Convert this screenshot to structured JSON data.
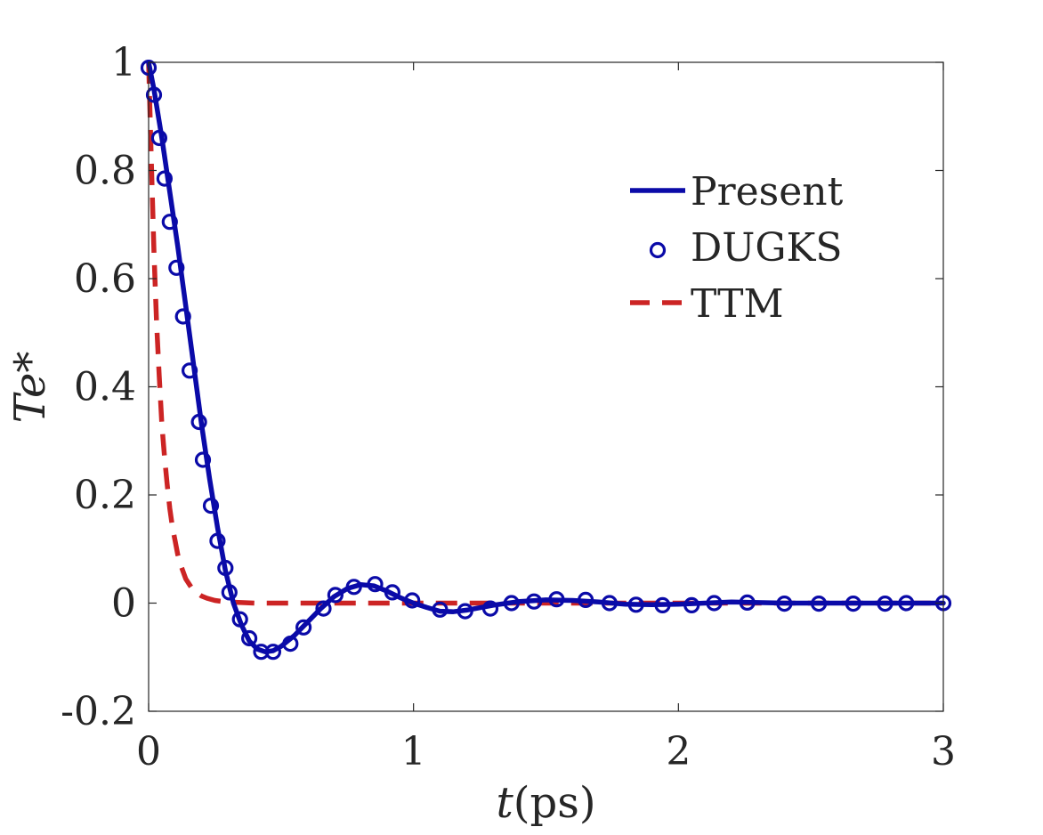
{
  "chart_data": {
    "type": "line",
    "title": "",
    "xlabel": {
      "var": "t",
      "unit": "(ps)"
    },
    "ylabel": {
      "var": "Te",
      "suffix": "*"
    },
    "xlim": [
      0,
      3
    ],
    "ylim": [
      -0.2,
      1
    ],
    "xticks": [
      0,
      1,
      2,
      3
    ],
    "xtick_labels": [
      "0",
      "1",
      "2",
      "3"
    ],
    "yticks": [
      -0.2,
      0,
      0.2,
      0.4,
      0.6,
      0.8,
      1
    ],
    "ytick_labels": [
      "-0.2",
      "0",
      "0.2",
      "0.4",
      "0.6",
      "0.8",
      "1"
    ],
    "grid": false,
    "legend_position": "top-right",
    "colors": {
      "present": "#0a0aa8",
      "dugks": "#0a0aa8",
      "ttm": "#cc2424",
      "axis": "#262626"
    },
    "series": [
      {
        "name": "Present",
        "style": "solid-line",
        "x": [
          0,
          0.02,
          0.05,
          0.08,
          0.11,
          0.14,
          0.17,
          0.2,
          0.23,
          0.26,
          0.29,
          0.32,
          0.35,
          0.38,
          0.41,
          0.44,
          0.47,
          0.5,
          0.55,
          0.6,
          0.65,
          0.7,
          0.75,
          0.8,
          0.85,
          0.9,
          0.95,
          1.0,
          1.05,
          1.1,
          1.15,
          1.2,
          1.3,
          1.4,
          1.5,
          1.6,
          1.7,
          1.8,
          1.9,
          2.0,
          2.2,
          2.4,
          2.6,
          2.8,
          3.0
        ],
        "y": [
          1.0,
          0.95,
          0.86,
          0.76,
          0.66,
          0.55,
          0.44,
          0.33,
          0.23,
          0.14,
          0.06,
          0.0,
          -0.04,
          -0.07,
          -0.085,
          -0.09,
          -0.088,
          -0.08,
          -0.06,
          -0.035,
          -0.01,
          0.012,
          0.027,
          0.034,
          0.032,
          0.022,
          0.01,
          0.0,
          -0.008,
          -0.015,
          -0.016,
          -0.013,
          -0.004,
          0.003,
          0.006,
          0.005,
          0.002,
          -0.002,
          -0.003,
          -0.002,
          0.002,
          0.0,
          0.0,
          0.0,
          0.0
        ]
      },
      {
        "name": "DUGKS",
        "style": "open-circle-markers",
        "x": [
          0,
          0.02,
          0.04,
          0.06,
          0.08,
          0.105,
          0.13,
          0.155,
          0.19,
          0.205,
          0.235,
          0.26,
          0.29,
          0.305,
          0.345,
          0.38,
          0.425,
          0.47,
          0.535,
          0.585,
          0.66,
          0.705,
          0.775,
          0.855,
          0.92,
          0.995,
          1.1,
          1.195,
          1.29,
          1.37,
          1.455,
          1.54,
          1.65,
          1.74,
          1.84,
          1.94,
          2.05,
          2.135,
          2.26,
          2.4,
          2.53,
          2.66,
          2.78,
          2.86,
          3.0
        ],
        "y": [
          0.99,
          0.94,
          0.86,
          0.785,
          0.705,
          0.62,
          0.53,
          0.43,
          0.335,
          0.265,
          0.18,
          0.115,
          0.065,
          0.02,
          -0.03,
          -0.065,
          -0.09,
          -0.09,
          -0.075,
          -0.045,
          -0.01,
          0.015,
          0.03,
          0.035,
          0.02,
          0.005,
          -0.012,
          -0.015,
          -0.01,
          0.0,
          0.003,
          0.007,
          0.006,
          0.0,
          -0.003,
          -0.004,
          -0.004,
          0.0,
          0.001,
          -0.001,
          -0.001,
          -0.001,
          -0.001,
          0.0,
          0.0
        ]
      },
      {
        "name": "TTM",
        "style": "dashed-line",
        "x": [
          0,
          0.01,
          0.02,
          0.03,
          0.04,
          0.05,
          0.06,
          0.07,
          0.08,
          0.09,
          0.1,
          0.11,
          0.12,
          0.14,
          0.16,
          0.18,
          0.2,
          0.22,
          0.25,
          0.28,
          0.3,
          0.35,
          0.4,
          0.5,
          0.6,
          0.8,
          1.0,
          1.5,
          2.0,
          2.5,
          3.0
        ],
        "y": [
          1.0,
          0.82,
          0.65,
          0.52,
          0.42,
          0.33,
          0.27,
          0.22,
          0.175,
          0.14,
          0.115,
          0.09,
          0.072,
          0.045,
          0.03,
          0.02,
          0.013,
          0.009,
          0.005,
          0.003,
          0.002,
          0.001,
          0.0,
          0.0,
          0.0,
          0.0,
          0.0,
          0.0,
          0.0,
          0.0,
          0.0
        ]
      }
    ]
  }
}
